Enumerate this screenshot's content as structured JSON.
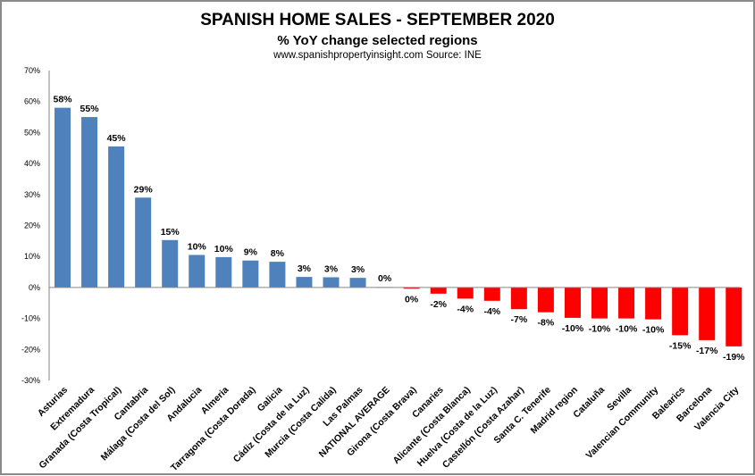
{
  "chart_data": {
    "type": "bar",
    "title": "SPANISH HOME SALES - SEPTEMBER 2020",
    "subtitle": "% YoY change selected regions",
    "source": "www.spanishpropertyinsight.com Source:  INE",
    "xlabel": "",
    "ylabel": "",
    "ylim": [
      -30,
      70
    ],
    "yticks": [
      70,
      60,
      50,
      40,
      30,
      20,
      10,
      0,
      -10,
      -20,
      -30
    ],
    "ytick_format": "%",
    "grid": false,
    "legend": "none",
    "colors": {
      "positive": "#4F81BD",
      "negative": "#FF0000",
      "neutral": "#D9D9D9"
    },
    "categories": [
      "Asturias",
      "Extremadura",
      "Granada (Costa Tropical)",
      "Cantabria",
      "Málaga (Costa del Sol)",
      "Andalucia",
      "Almeria",
      "Tarragona (Costa Dorada)",
      "Galicia",
      "Cádiz (Costa de la Luz)",
      "Murcia (Costa Calida)",
      "Las Palmas",
      "NATIONAL AVERAGE",
      "Girona (Costa Brava)",
      "Canaries",
      "Alicante (Costa Blanca)",
      "Huelva (Costa de la Luz)",
      "Castellón (Costa Azahar)",
      "Santa C. Tenerife",
      "Madrid region",
      "Cataluña",
      "Sevilla",
      "Valencian Community",
      "Balearics",
      "Barcelona",
      "Valencia City"
    ],
    "values": [
      58,
      55,
      45.5,
      29,
      15.3,
      10.5,
      9.8,
      8.7,
      8.3,
      3.4,
      3.3,
      3.1,
      0.2,
      -0.4,
      -2,
      -3.6,
      -4.3,
      -7,
      -8,
      -9.8,
      -10,
      -10,
      -10.3,
      -15.4,
      -17,
      -19
    ],
    "data_labels": [
      "58%",
      "55%",
      "45%",
      "29%",
      "15%",
      "10%",
      "10%",
      "9%",
      "8%",
      "3%",
      "3%",
      "3%",
      "0%",
      "0%",
      "-2%",
      "-4%",
      "-4%",
      "-7%",
      "-8%",
      "-10%",
      "-10%",
      "-10%",
      "-10%",
      "-15%",
      "-17%",
      "-19%"
    ]
  }
}
